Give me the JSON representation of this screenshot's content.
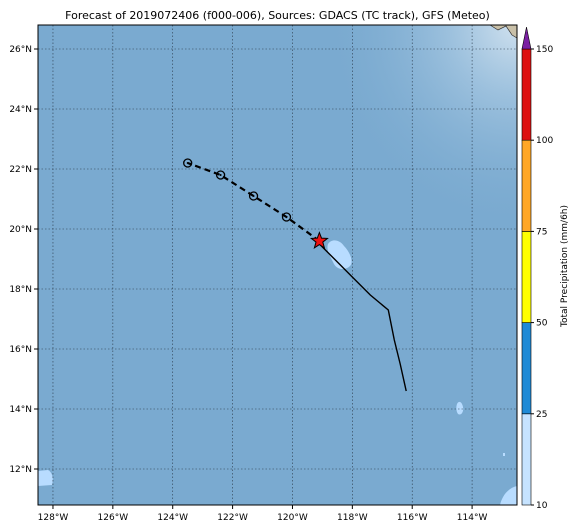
{
  "title": "Forecast of 2019072406 (f000-006), Sources: GDACS (TC track), GFS (Meteo)",
  "map": {
    "lon_range": [
      -128.5,
      -112.5
    ],
    "lat_range": [
      10.8,
      26.8
    ],
    "lon_ticks": [
      {
        "value": -128,
        "label": "128°W"
      },
      {
        "value": -126,
        "label": "126°W"
      },
      {
        "value": -124,
        "label": "124°W"
      },
      {
        "value": -122,
        "label": "122°W"
      },
      {
        "value": -120,
        "label": "120°W"
      },
      {
        "value": -118,
        "label": "118°W"
      },
      {
        "value": -116,
        "label": "116°W"
      },
      {
        "value": -114,
        "label": "114°W"
      }
    ],
    "lat_ticks": [
      {
        "value": 12,
        "label": "12°N"
      },
      {
        "value": 14,
        "label": "14°N"
      },
      {
        "value": 16,
        "label": "16°N"
      },
      {
        "value": 18,
        "label": "18°N"
      },
      {
        "value": 20,
        "label": "20°N"
      },
      {
        "value": 22,
        "label": "22°N"
      },
      {
        "value": 24,
        "label": "24°N"
      },
      {
        "value": 26,
        "label": "26°N"
      }
    ],
    "gridlines": true,
    "colors": {
      "ocean": "#7aaad0",
      "land": "#c9c0a8",
      "grid": "#2a3a4a"
    }
  },
  "track": {
    "past": [
      {
        "lon": -116.2,
        "lat": 14.6
      },
      {
        "lon": -116.4,
        "lat": 15.5
      },
      {
        "lon": -116.6,
        "lat": 16.3
      },
      {
        "lon": -116.8,
        "lat": 17.3
      },
      {
        "lon": -117.4,
        "lat": 17.8
      },
      {
        "lon": -118.0,
        "lat": 18.4
      },
      {
        "lon": -118.6,
        "lat": 19.0
      },
      {
        "lon": -119.1,
        "lat": 19.5
      }
    ],
    "current": {
      "lon": -119.1,
      "lat": 19.6
    },
    "forecast": [
      {
        "lon": -119.1,
        "lat": 19.6
      },
      {
        "lon": -120.2,
        "lat": 20.4
      },
      {
        "lon": -121.3,
        "lat": 21.1
      },
      {
        "lon": -122.4,
        "lat": 21.8
      },
      {
        "lon": -123.5,
        "lat": 22.2
      }
    ],
    "colors": {
      "line": "#000000",
      "star": "#ee1111"
    }
  },
  "precip": {
    "colors": {
      "light": "#b8dcff"
    }
  },
  "colorbar": {
    "label": "Total Precipitation (mm/6h)",
    "ticks": [
      "10",
      "25",
      "50",
      "75",
      "100",
      "150"
    ],
    "colors": [
      "#c6e3ff",
      "#1f8ad6",
      "#ffff00",
      "#ffa726",
      "#dd1111",
      "#7b1fa2"
    ]
  }
}
